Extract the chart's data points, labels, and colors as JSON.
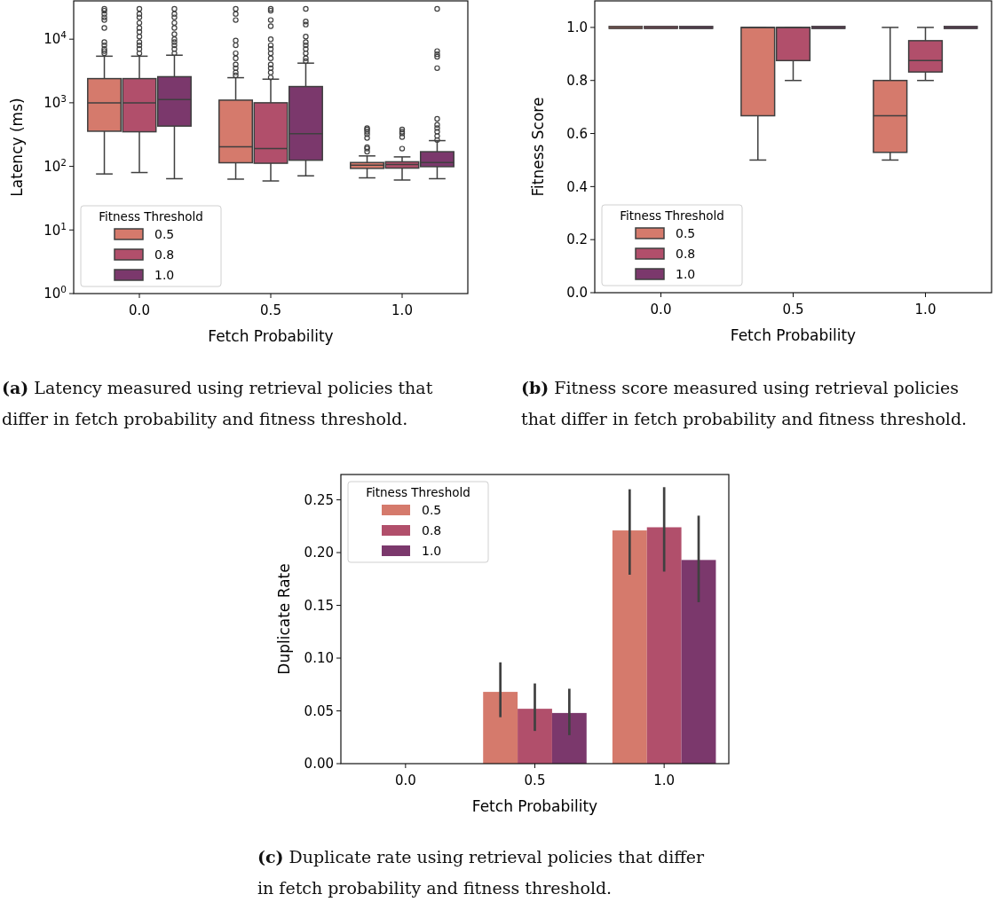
{
  "chart_data": [
    {
      "type": "box",
      "categories": [
        "0.0",
        "0.5",
        "1.0"
      ],
      "xlabel": "Fetch Probability",
      "ylabel": "Latency (ms)",
      "legend_title": "Fitness Threshold",
      "legend": "bottom left",
      "log": true,
      "ylim": [
        1,
        40000
      ],
      "yticks": [
        {
          "value": 1,
          "label": "10$^{0}$"
        },
        {
          "value": 10,
          "label": "10$^{1}$"
        },
        {
          "value": 100,
          "label": "10$^{2}$"
        },
        {
          "value": 1000,
          "label": "10$^{3}$"
        },
        {
          "value": 10000,
          "label": "10$^{4}$"
        }
      ],
      "series": [
        {
          "name": "0.5",
          "color": "#d57a6c",
          "boxes": [
            {
              "low": 76,
              "q1": 357,
              "median": 1000,
              "q3": 2400,
              "high": 5400,
              "outliers": [
                6000,
                6500,
                7000,
                8000,
                9000,
                15000,
                20000,
                22000,
                25000,
                28000,
                30000
              ]
            },
            {
              "low": 63,
              "q1": 114,
              "median": 203,
              "q3": 1100,
              "high": 2480,
              "outliers": [
                2700,
                3000,
                3500,
                4000,
                5000,
                6000,
                8000,
                9500,
                20000,
                25000,
                30000
              ]
            },
            {
              "low": 66,
              "q1": 93,
              "median": 104,
              "q3": 115,
              "high": 146,
              "outliers": [
                170,
                190,
                200,
                280,
                320,
                350,
                380,
                400
              ]
            }
          ]
        },
        {
          "name": "0.8",
          "color": "#b14f6b",
          "boxes": [
            {
              "low": 80,
              "q1": 350,
              "median": 1000,
              "q3": 2400,
              "high": 5400,
              "outliers": [
                6000,
                7000,
                8000,
                9000,
                11000,
                13000,
                15000,
                18000,
                22000,
                25000,
                30000
              ]
            },
            {
              "low": 59,
              "q1": 112,
              "median": 190,
              "q3": 1000,
              "high": 2350,
              "outliers": [
                2500,
                3000,
                3500,
                4000,
                5000,
                6000,
                7000,
                8000,
                10000,
                16000,
                20000,
                28000,
                30000
              ]
            },
            {
              "low": 61,
              "q1": 94,
              "median": 107,
              "q3": 118,
              "high": 141,
              "outliers": [
                190,
                290,
                330,
                350,
                380
              ]
            }
          ]
        },
        {
          "name": "1.0",
          "color": "#7b386c",
          "boxes": [
            {
              "low": 64,
              "q1": 430,
              "median": 1120,
              "q3": 2570,
              "high": 5600,
              "outliers": [
                6000,
                7000,
                8000,
                9000,
                10000,
                12000,
                15000,
                18000,
                22000,
                25000,
                30000
              ]
            },
            {
              "low": 71,
              "q1": 125,
              "median": 327,
              "q3": 1800,
              "high": 4200,
              "outliers": [
                4500,
                5000,
                6000,
                7000,
                8000,
                9000,
                11000,
                17000,
                19000,
                30000
              ]
            },
            {
              "low": 64,
              "q1": 99,
              "median": 115,
              "q3": 170,
              "high": 254,
              "outliers": [
                260,
                300,
                350,
                400,
                450,
                560,
                3500,
                5300,
                5800,
                6500,
                30000
              ]
            }
          ]
        }
      ],
      "annotations": [
        "(a) Latency measured using retrieval policies that differ in fetch probability and fitness threshold."
      ]
    },
    {
      "type": "box",
      "categories": [
        "0.0",
        "0.5",
        "1.0"
      ],
      "xlabel": "Fetch Probability",
      "ylabel": "Fitness Score",
      "legend_title": "Fitness Threshold",
      "legend": "bottom left",
      "ylim": [
        0,
        1.1
      ],
      "yticks": [
        {
          "value": 0,
          "label": "0.0"
        },
        0.2,
        0.4,
        0.6,
        0.8,
        {
          "value": 1,
          "label": "1.0"
        }
      ],
      "series": [
        {
          "name": "0.5",
          "color": "#d57a6c",
          "boxes": [
            {
              "low": 1,
              "q1": 1,
              "median": 1,
              "q3": 1,
              "high": 1
            },
            {
              "low": 0.5,
              "q1": 0.667,
              "median": 1,
              "q3": 1,
              "high": 1
            },
            {
              "low": 0.5,
              "q1": 0.529,
              "median": 0.667,
              "q3": 0.8,
              "high": 1
            }
          ]
        },
        {
          "name": "0.8",
          "color": "#b14f6b",
          "boxes": [
            {
              "low": 1,
              "q1": 1,
              "median": 1,
              "q3": 1,
              "high": 1
            },
            {
              "low": 0.8,
              "q1": 0.875,
              "median": 1,
              "q3": 1,
              "high": 1
            },
            {
              "low": 0.8,
              "q1": 0.832,
              "median": 0.875,
              "q3": 0.95,
              "high": 1
            }
          ]
        },
        {
          "name": "1.0",
          "color": "#7b386c",
          "boxes": [
            {
              "low": 1,
              "q1": 1,
              "median": 1,
              "q3": 1,
              "high": 1
            },
            {
              "low": 1,
              "q1": 1,
              "median": 1,
              "q3": 1,
              "high": 1
            },
            {
              "low": 1,
              "q1": 1,
              "median": 1,
              "q3": 1,
              "high": 1
            }
          ]
        }
      ],
      "annotations": [
        "(b) Fitness score measured using retrieval policies that differ in fetch probability and fitness threshold."
      ]
    },
    {
      "type": "bar",
      "categories": [
        "0.0",
        "0.5",
        "1.0"
      ],
      "xlabel": "Fetch Probability",
      "ylabel": "Duplicate Rate",
      "legend_title": "Fitness Threshold",
      "legend": "top left",
      "ylim": [
        0,
        0.274
      ],
      "yticks": [
        {
          "value": 0,
          "label": "0.00"
        },
        0.05,
        {
          "value": 0.1,
          "label": "0.10"
        },
        0.15,
        {
          "value": 0.2,
          "label": "0.20"
        },
        0.25
      ],
      "series": [
        {
          "name": "0.5",
          "color": "#d57a6c",
          "values": [
            0,
            0.068,
            0.221
          ],
          "errors": [
            null,
            [
              0.044,
              0.096
            ],
            [
              0.179,
              0.26
            ]
          ]
        },
        {
          "name": "0.8",
          "color": "#b14f6b",
          "values": [
            0,
            0.052,
            0.224
          ],
          "errors": [
            null,
            [
              0.031,
              0.076
            ],
            [
              0.182,
              0.262
            ]
          ]
        },
        {
          "name": "1.0",
          "color": "#7b386c",
          "values": [
            0,
            0.048,
            0.193
          ],
          "errors": [
            null,
            [
              0.027,
              0.071
            ],
            [
              0.153,
              0.235
            ]
          ]
        }
      ],
      "annotations": [
        "(c) Duplicate rate using retrieval policies that differ in fetch probability and fitness threshold."
      ]
    }
  ]
}
